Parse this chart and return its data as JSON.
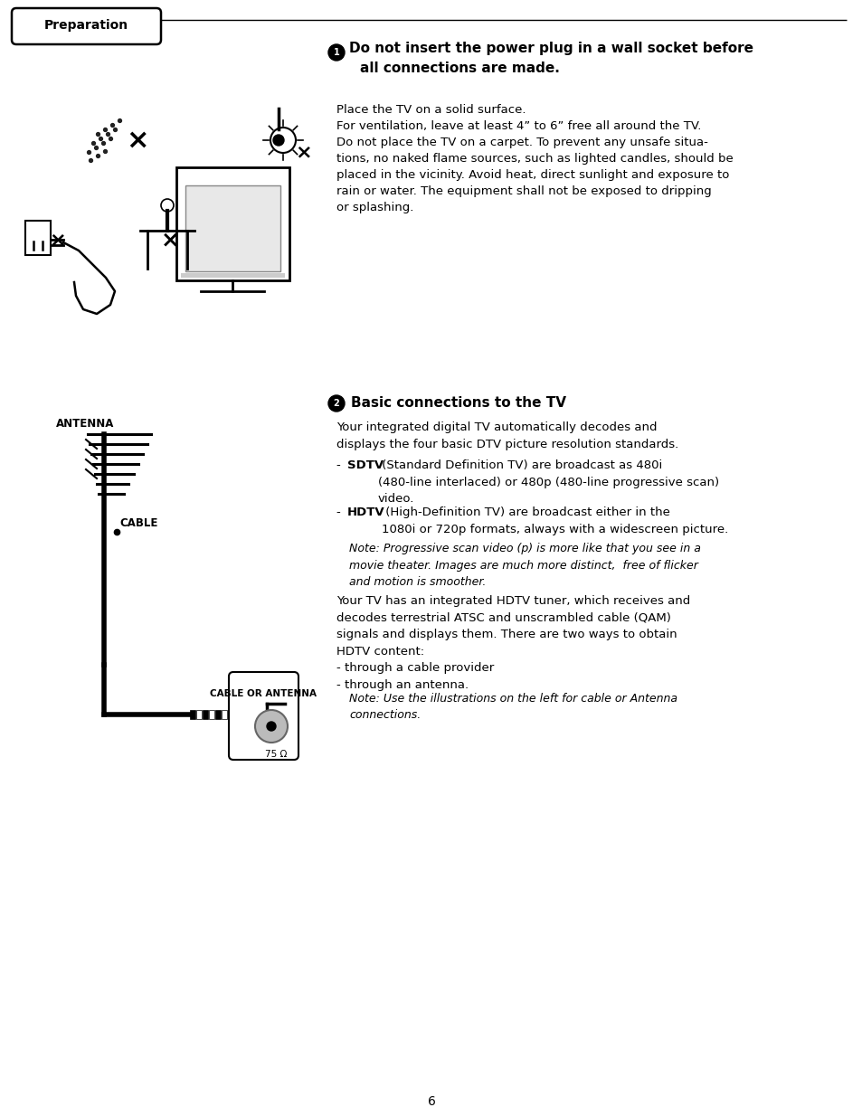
{
  "bg_color": "#ffffff",
  "page_number": "6",
  "tab_label": "Preparation",
  "section1_number": "①",
  "section1_heading": " Do not insert the power plug in a wall socket before\n   all connections are made.",
  "section1_body": "Place the TV on a solid surface.\nFor ventilation, leave at least 4” to 6” free all around the TV.\nDo not place the TV on a carpet. To prevent any unsafe situa-\ntions, no naked flame sources, such as lighted candles, should be\nplaced in the vicinity. Avoid heat, direct sunlight and exposure to\nrain or water. The equipment shall not be exposed to dripping\nor splashing.",
  "section2_heading": "Basic connections to the TV",
  "section2_body1": "Your integrated digital TV automatically decodes and\ndisplays the four basic DTV picture resolution standards.",
  "section2_sdtv_bold": "SDTV",
  "section2_sdtv_text": " (Standard Definition TV) are broadcast as 480i\n(480-line interlaced) or 480p (480-line progressive scan)\nvideo.",
  "section2_hdtv_bold": "HDTV",
  "section2_hdtv_text": " (High-Definition TV) are broadcast either in the\n1080i or 720p formats, always with a widescreen picture.",
  "section2_note1": "Note: Progressive scan video (p) is more like that you see in a\nmovie theater. Images are much more distinct,  free of flicker\nand motion is smoother.",
  "section2_body2": "Your TV has an integrated HDTV tuner, which receives and\ndecodes terrestrial ATSC and unscrambled cable (QAM)\nsignals and displays them. There are two ways to obtain\nHDTV content:\n- through a cable provider\n- through an antenna.",
  "section2_note2": "Note: Use the illustrations on the left for cable or Antenna\nconnections.",
  "label_antenna": "ANTENNA",
  "label_cable": "CABLE",
  "label_cable_or_antenna": "CABLE OR ANTENNA",
  "label_75ohm": "75 Ω"
}
